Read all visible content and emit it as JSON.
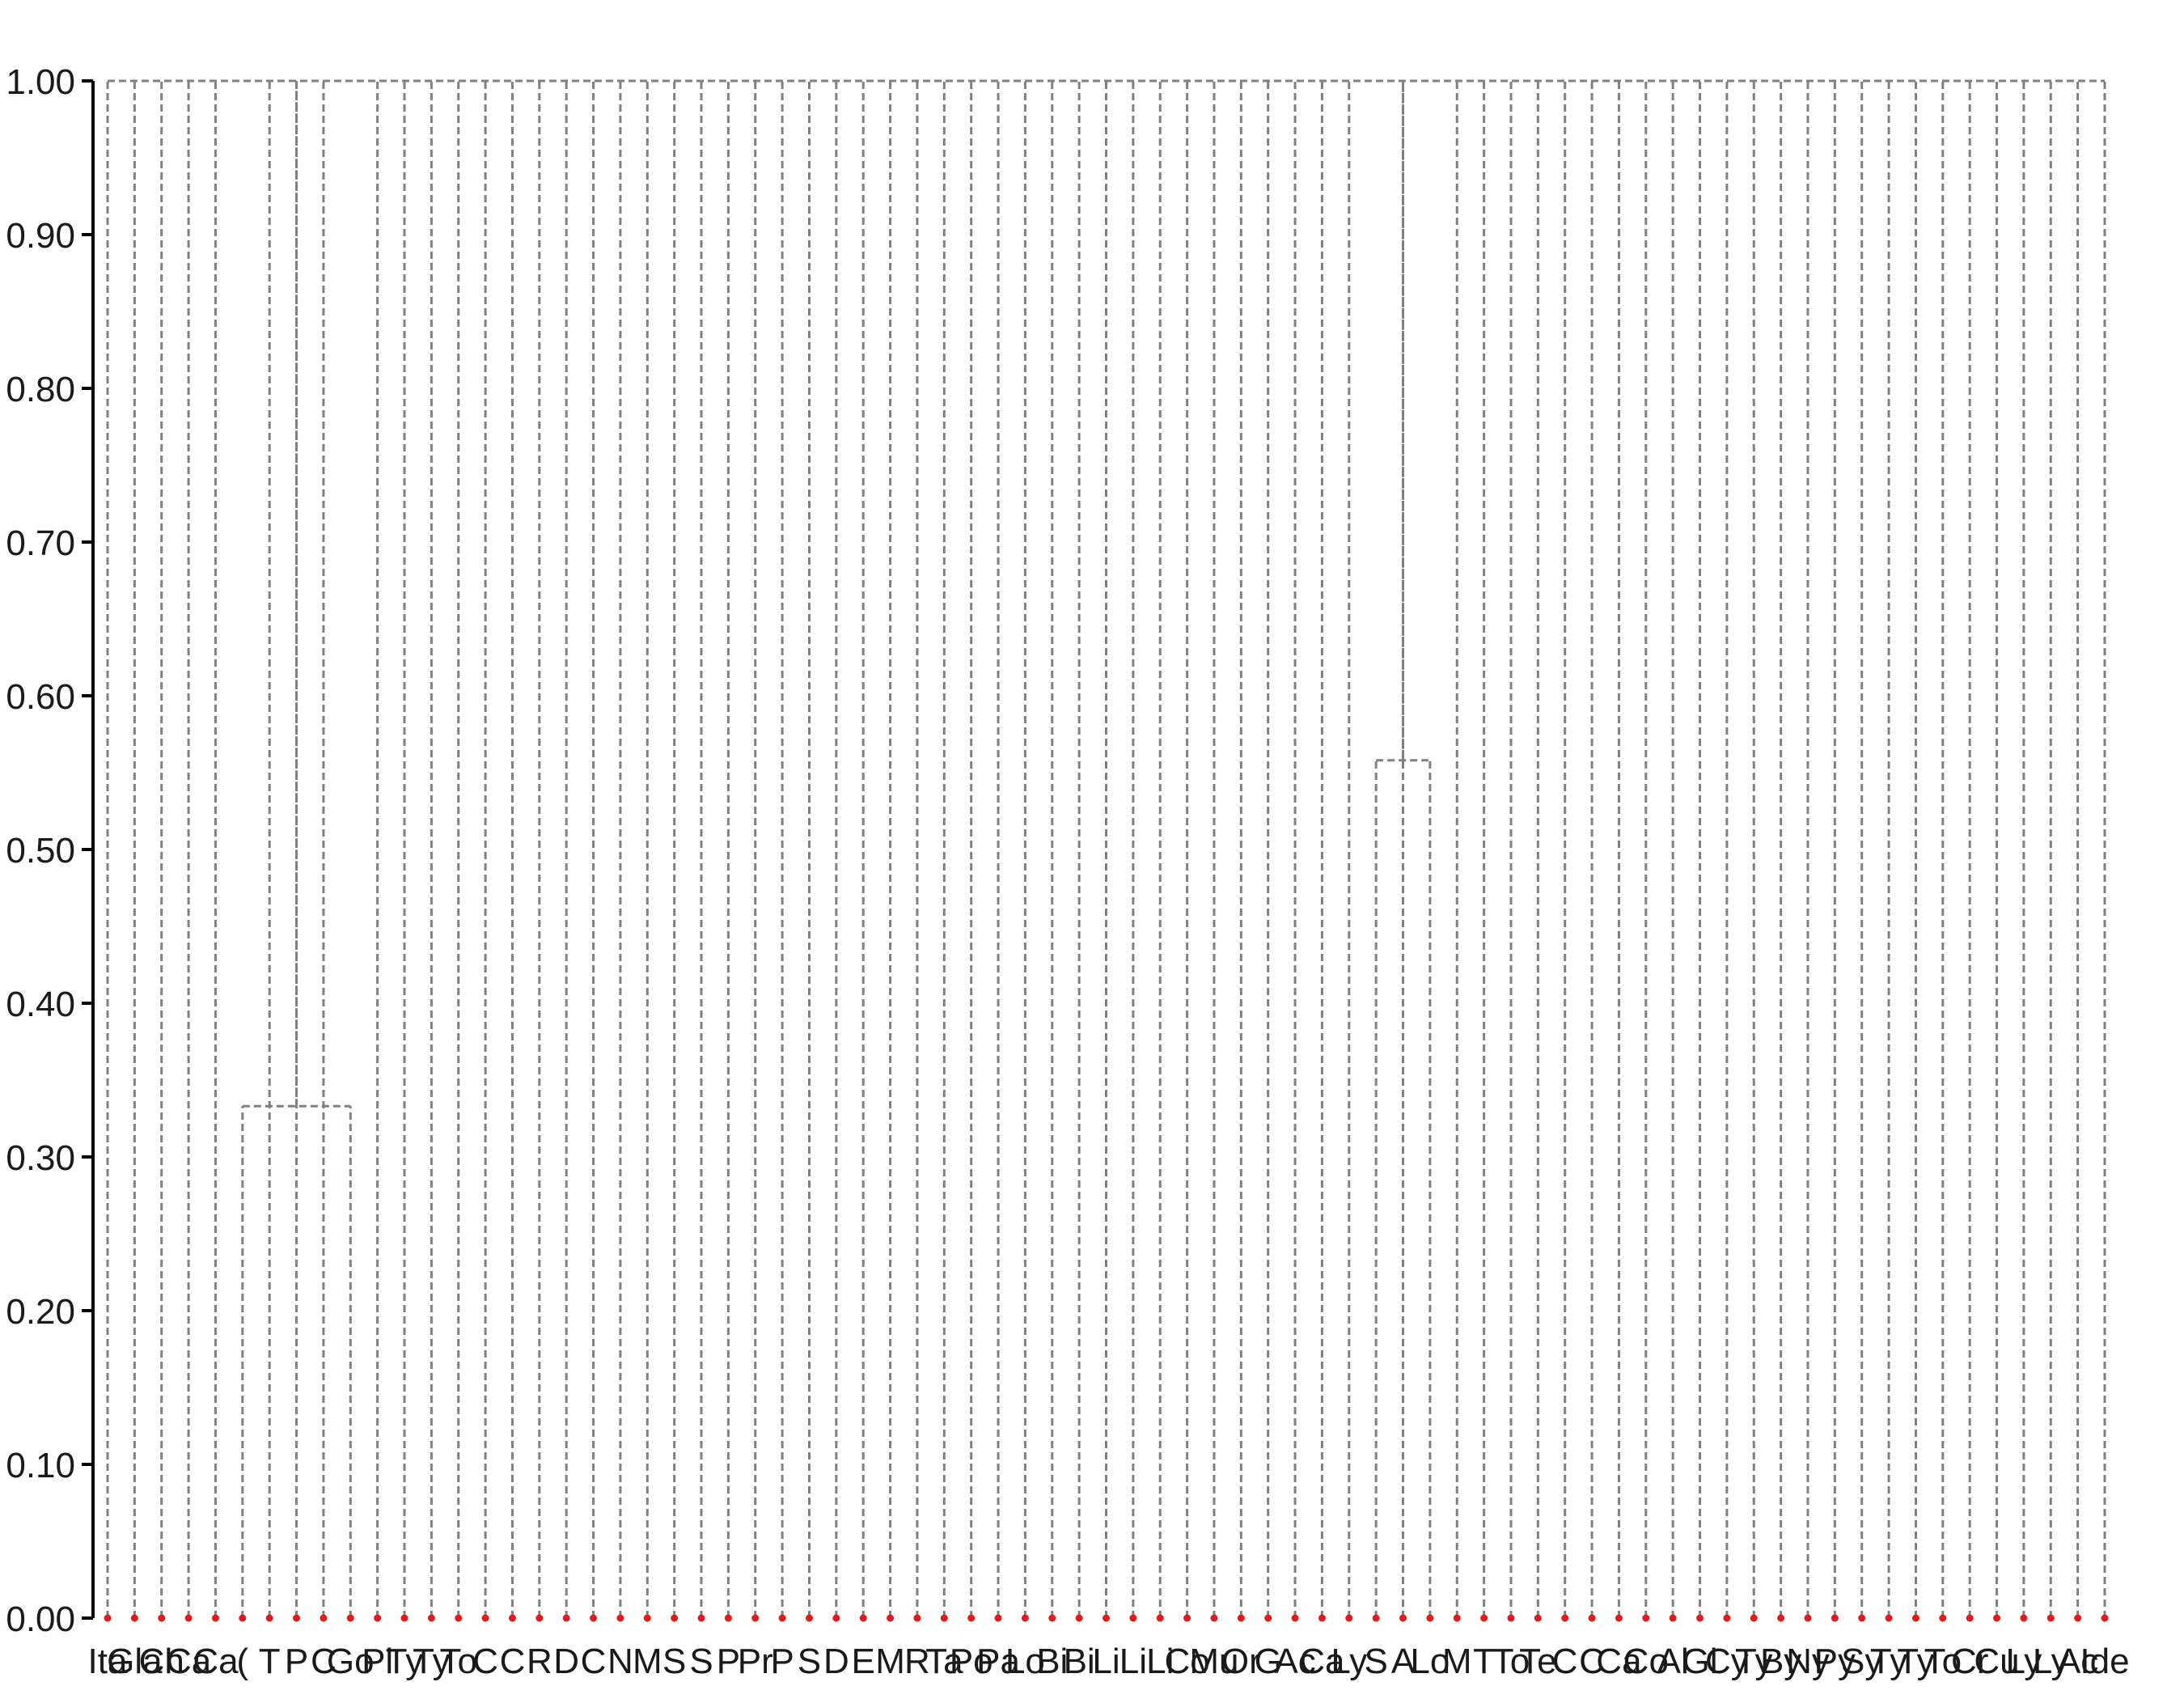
{
  "chart_data": {
    "type": "dendrogram",
    "title": "",
    "xlabel": "",
    "ylabel": "",
    "ylim": [
      0,
      1
    ],
    "y_ticks": [
      "0.00",
      "0.10",
      "0.20",
      "0.30",
      "0.40",
      "0.50",
      "0.60",
      "0.70",
      "0.80",
      "0.90",
      "1.00"
    ],
    "grid": false,
    "leaf_labels_legible": false,
    "leaf_count": 75,
    "x_tick_labels": [
      "Ita",
      "Gla",
      "Ch",
      "Ca",
      "Ca",
      "(",
      "T",
      "P",
      "C",
      "Go",
      "Pl",
      "Ty",
      "Ty",
      "To",
      "C",
      "C",
      "R",
      "D",
      "C",
      "N",
      "M",
      "S",
      "S",
      "P",
      "Pr",
      "P",
      "S",
      "D",
      "E",
      "M",
      "R",
      "Ta",
      "Po",
      "Pa",
      "Lo",
      "Bi",
      "Bi",
      "Li",
      "Li",
      "Li",
      "Co",
      "Mu",
      "Or",
      "G",
      "Ac",
      "Ca",
      "Ly",
      "S",
      "A",
      "Lo",
      "M",
      "T",
      "To",
      "Te",
      "C",
      "C",
      "Ca",
      "Co",
      "Al",
      "Gl",
      "Cy",
      "Ty",
      "By",
      "Ny",
      "Py",
      "Sy",
      "Ty",
      "Ty",
      "To",
      "Cr",
      "Cu",
      "Ly",
      "Ly",
      "Ac",
      "Ide"
    ],
    "merges": [
      {
        "leaves": [
          5,
          9
        ],
        "height": 0.333
      },
      {
        "leaves": [
          47,
          49
        ],
        "height": 0.558
      }
    ],
    "root_height": 1.0,
    "colors": {
      "link": "#808080",
      "leaf_marker": "#e31a1c",
      "axis": "#000000",
      "text": "#1a1a1a"
    }
  }
}
